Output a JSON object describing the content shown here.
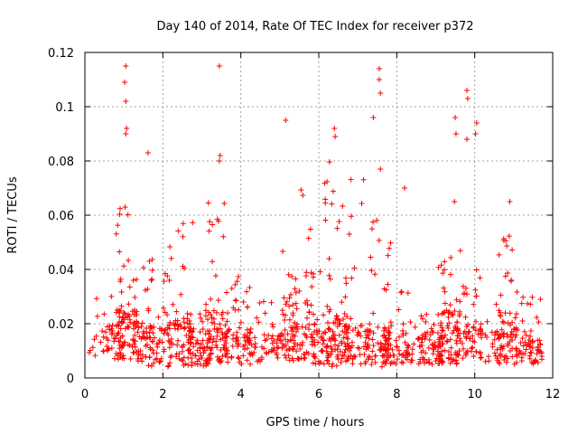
{
  "chart_data": {
    "type": "scatter",
    "title": "Day 140 of 2014, Rate Of TEC Index for receiver p372",
    "xlabel": "GPS time / hours",
    "ylabel": "ROTI / TECUs",
    "xlim": [
      0,
      12
    ],
    "ylim": [
      0,
      0.12
    ],
    "xticks": [
      0,
      2,
      4,
      6,
      8,
      10,
      12
    ],
    "xtick_labels": [
      "0",
      "2",
      "4",
      "6",
      "8",
      "10",
      "12"
    ],
    "yticks": [
      0,
      0.02,
      0.04,
      0.06,
      0.08,
      0.1,
      0.12
    ],
    "ytick_labels": [
      "0",
      "0.02",
      "0.04",
      "0.06",
      "0.08",
      "0.1",
      "0.12"
    ],
    "grid": true,
    "marker": "+",
    "series": [
      {
        "name": "ROTI",
        "color": "#ff0000",
        "approx_point_count": 1200,
        "notable_points": [
          {
            "x": 1.05,
            "y": 0.115
          },
          {
            "x": 1.02,
            "y": 0.109
          },
          {
            "x": 1.05,
            "y": 0.102
          },
          {
            "x": 1.07,
            "y": 0.092
          },
          {
            "x": 1.05,
            "y": 0.09
          },
          {
            "x": 1.62,
            "y": 0.083
          },
          {
            "x": 3.45,
            "y": 0.115
          },
          {
            "x": 3.47,
            "y": 0.082
          },
          {
            "x": 3.45,
            "y": 0.08
          },
          {
            "x": 5.15,
            "y": 0.095
          },
          {
            "x": 6.4,
            "y": 0.092
          },
          {
            "x": 6.42,
            "y": 0.089
          },
          {
            "x": 7.4,
            "y": 0.096
          },
          {
            "x": 7.55,
            "y": 0.114
          },
          {
            "x": 7.55,
            "y": 0.11
          },
          {
            "x": 7.58,
            "y": 0.105
          },
          {
            "x": 7.58,
            "y": 0.077
          },
          {
            "x": 8.2,
            "y": 0.07
          },
          {
            "x": 9.5,
            "y": 0.096
          },
          {
            "x": 9.52,
            "y": 0.09
          },
          {
            "x": 9.8,
            "y": 0.106
          },
          {
            "x": 9.82,
            "y": 0.103
          },
          {
            "x": 9.8,
            "y": 0.088
          },
          {
            "x": 10.05,
            "y": 0.094
          },
          {
            "x": 10.02,
            "y": 0.09
          },
          {
            "x": 9.48,
            "y": 0.065
          },
          {
            "x": 10.9,
            "y": 0.065
          }
        ]
      }
    ],
    "generator_clusters": [
      {
        "center": 0.35,
        "width": 0.35,
        "count": 25,
        "base": 0.008,
        "maxDecay": 0.01,
        "hi": 0.03
      },
      {
        "center": 0.8,
        "width": 0.25,
        "count": 55,
        "base": 0.006,
        "maxDecay": 0.02,
        "hi": 0.065
      },
      {
        "center": 1.15,
        "width": 0.25,
        "count": 60,
        "base": 0.006,
        "maxDecay": 0.02,
        "hi": 0.065
      },
      {
        "center": 1.5,
        "width": 0.25,
        "count": 45,
        "base": 0.006,
        "maxDecay": 0.015,
        "hi": 0.05
      },
      {
        "center": 1.9,
        "width": 0.3,
        "count": 50,
        "base": 0.004,
        "maxDecay": 0.015,
        "hi": 0.042
      },
      {
        "center": 2.45,
        "width": 0.35,
        "count": 70,
        "base": 0.004,
        "maxDecay": 0.018,
        "hi": 0.06
      },
      {
        "center": 2.95,
        "width": 0.35,
        "count": 65,
        "base": 0.004,
        "maxDecay": 0.012,
        "hi": 0.025
      },
      {
        "center": 3.4,
        "width": 0.3,
        "count": 70,
        "base": 0.005,
        "maxDecay": 0.02,
        "hi": 0.065
      },
      {
        "center": 3.9,
        "width": 0.35,
        "count": 70,
        "base": 0.005,
        "maxDecay": 0.012,
        "hi": 0.038
      },
      {
        "center": 4.5,
        "width": 0.35,
        "count": 35,
        "base": 0.006,
        "maxDecay": 0.01,
        "hi": 0.03
      },
      {
        "center": 5.0,
        "width": 0.35,
        "count": 40,
        "base": 0.006,
        "maxDecay": 0.01,
        "hi": 0.02
      },
      {
        "center": 5.25,
        "width": 0.2,
        "count": 30,
        "base": 0.01,
        "maxDecay": 0.02,
        "hi": 0.066
      },
      {
        "center": 5.6,
        "width": 0.3,
        "count": 55,
        "base": 0.006,
        "maxDecay": 0.015,
        "hi": 0.07
      },
      {
        "center": 6.0,
        "width": 0.35,
        "count": 50,
        "base": 0.005,
        "maxDecay": 0.012,
        "hi": 0.04
      },
      {
        "center": 6.45,
        "width": 0.3,
        "count": 85,
        "base": 0.004,
        "maxDecay": 0.02,
        "hi": 0.08
      },
      {
        "center": 6.95,
        "width": 0.35,
        "count": 55,
        "base": 0.005,
        "maxDecay": 0.015,
        "hi": 0.075
      },
      {
        "center": 7.5,
        "width": 0.35,
        "count": 75,
        "base": 0.004,
        "maxDecay": 0.015,
        "hi": 0.06
      },
      {
        "center": 8.0,
        "width": 0.35,
        "count": 50,
        "base": 0.005,
        "maxDecay": 0.012,
        "hi": 0.035
      },
      {
        "center": 8.5,
        "width": 0.3,
        "count": 35,
        "base": 0.005,
        "maxDecay": 0.01,
        "hi": 0.025
      },
      {
        "center": 8.9,
        "width": 0.3,
        "count": 45,
        "base": 0.005,
        "maxDecay": 0.012,
        "hi": 0.025
      },
      {
        "center": 9.35,
        "width": 0.3,
        "count": 95,
        "base": 0.005,
        "maxDecay": 0.02,
        "hi": 0.048
      },
      {
        "center": 9.85,
        "width": 0.3,
        "count": 50,
        "base": 0.006,
        "maxDecay": 0.015,
        "hi": 0.04
      },
      {
        "center": 10.4,
        "width": 0.35,
        "count": 40,
        "base": 0.006,
        "maxDecay": 0.012,
        "hi": 0.038
      },
      {
        "center": 10.85,
        "width": 0.25,
        "count": 60,
        "base": 0.005,
        "maxDecay": 0.02,
        "hi": 0.06
      },
      {
        "center": 11.2,
        "width": 0.3,
        "count": 40,
        "base": 0.006,
        "maxDecay": 0.012,
        "hi": 0.032
      },
      {
        "center": 11.6,
        "width": 0.15,
        "count": 30,
        "base": 0.005,
        "maxDecay": 0.01,
        "hi": 0.03
      }
    ]
  }
}
